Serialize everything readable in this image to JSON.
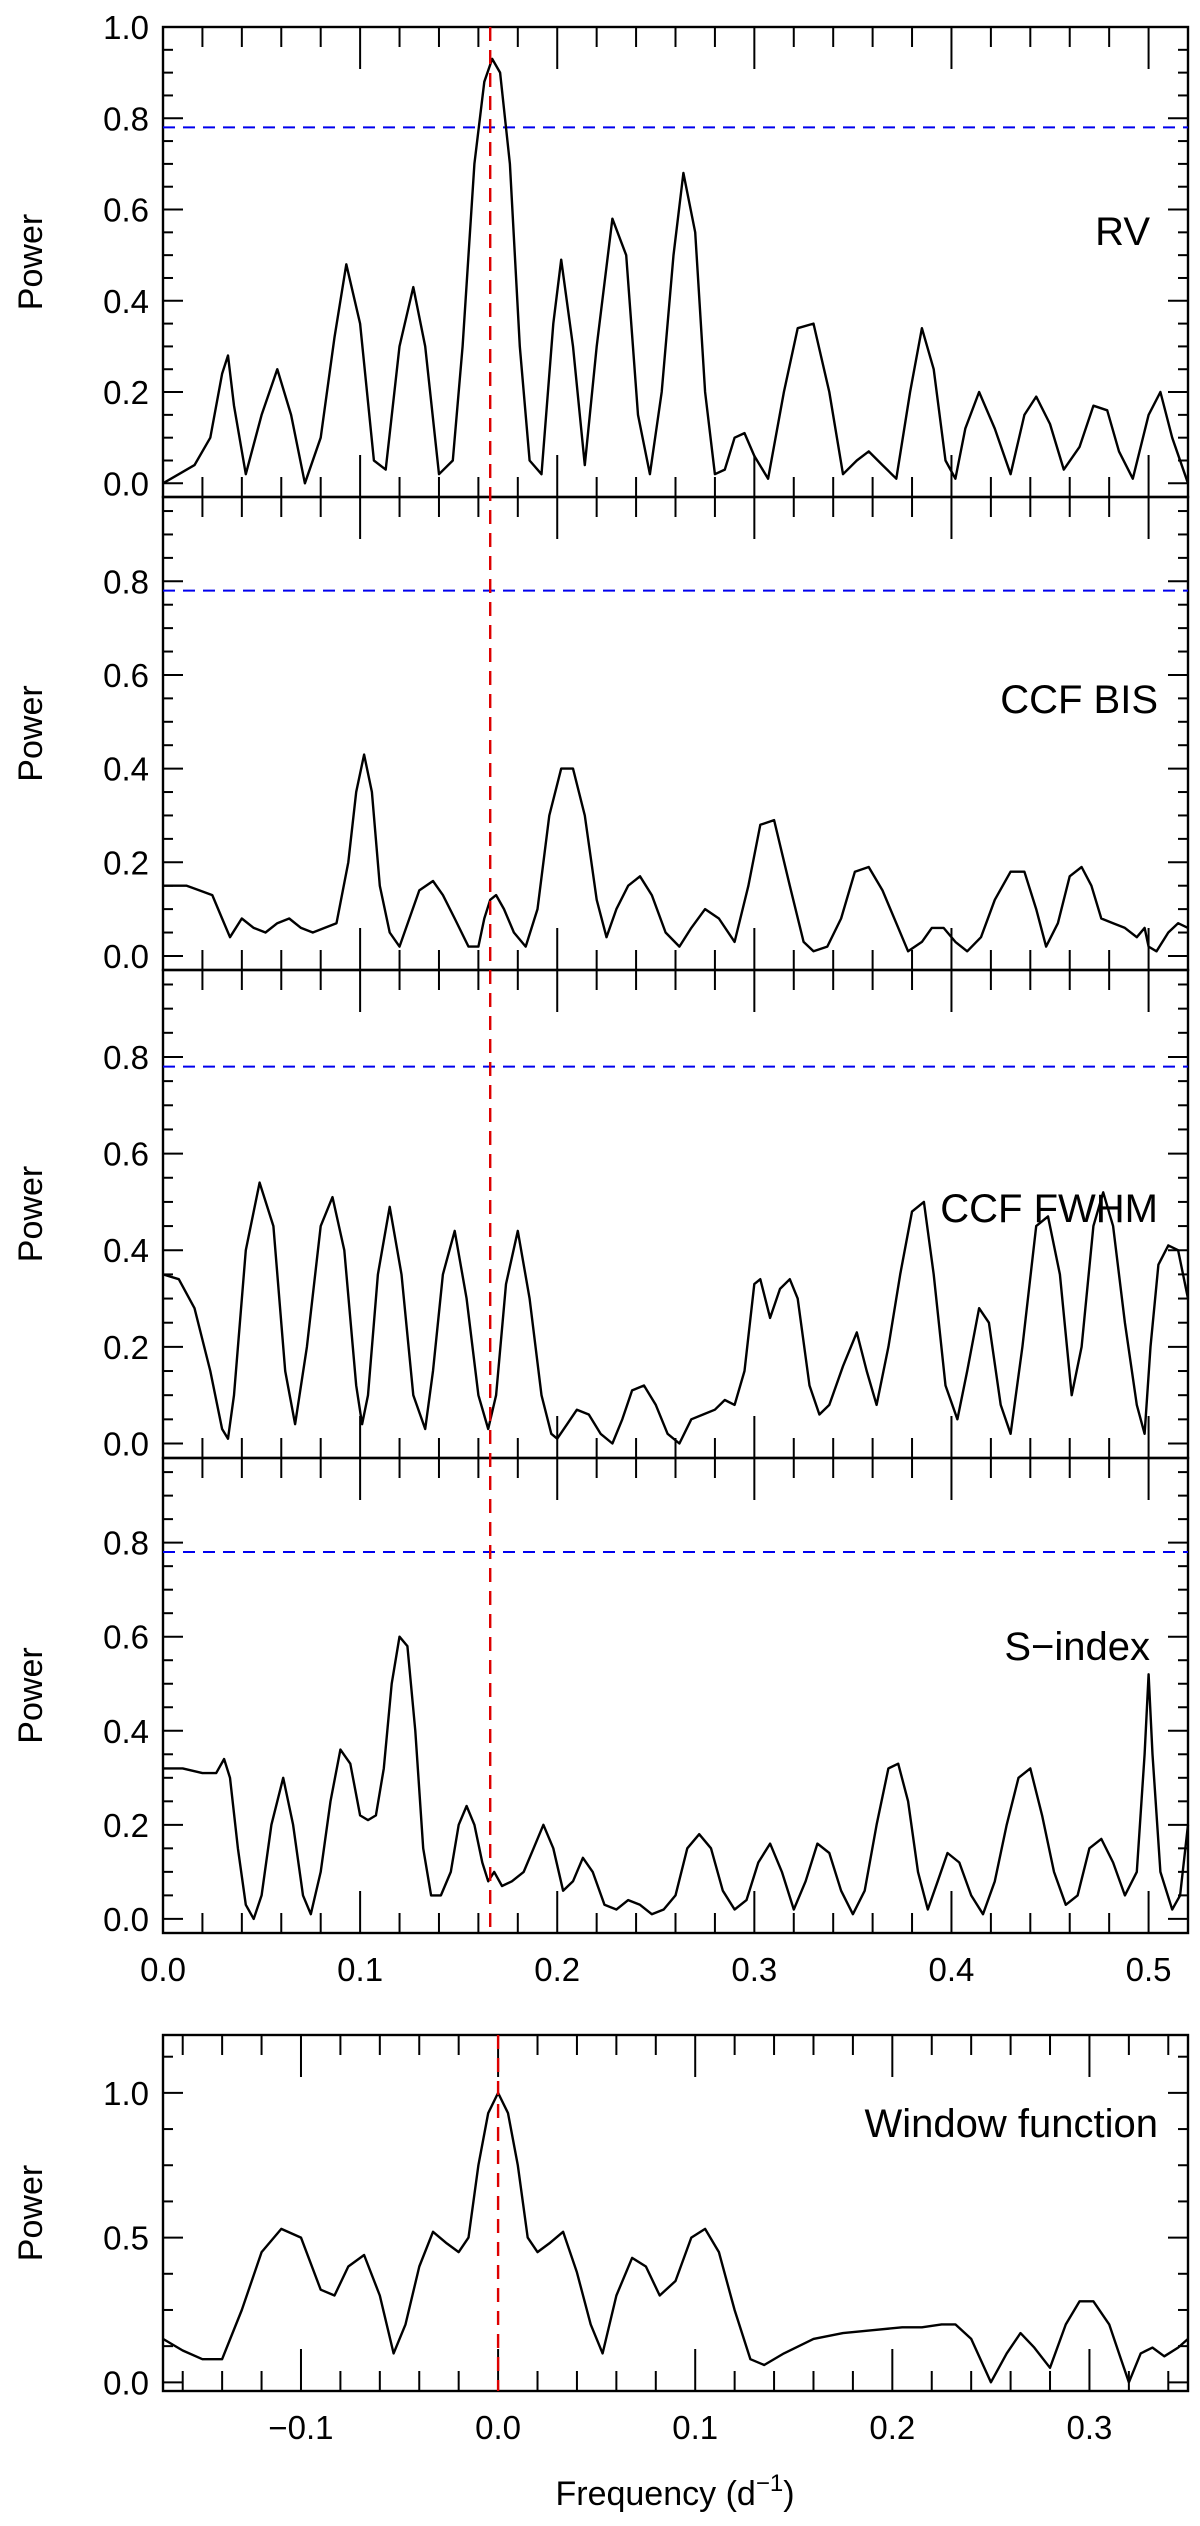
{
  "figure": {
    "ylabel": "Power",
    "xlabel_main": "Frequency (d",
    "xlabel_sup": "−1",
    "xlabel_end": ")",
    "marker_color": "#dd0000",
    "threshold_color": "#0000ee"
  },
  "chart_data": [
    {
      "type": "line",
      "label": "RV",
      "ylabel": "Power",
      "xlim": [
        0.0,
        0.52
      ],
      "ylim": [
        -0.03,
        1.0
      ],
      "yticks": [
        0.0,
        0.2,
        0.4,
        0.6,
        0.8,
        1.0
      ],
      "ytick_labels": [
        "0.0",
        "0.2",
        "0.4",
        "0.6",
        "0.8",
        "1.0"
      ],
      "threshold": 0.78,
      "marker_x": 0.166,
      "x": [
        0.0,
        0.008,
        0.016,
        0.024,
        0.03,
        0.033,
        0.036,
        0.042,
        0.05,
        0.058,
        0.065,
        0.072,
        0.08,
        0.087,
        0.093,
        0.1,
        0.107,
        0.113,
        0.12,
        0.127,
        0.133,
        0.14,
        0.147,
        0.152,
        0.158,
        0.163,
        0.167,
        0.171,
        0.176,
        0.181,
        0.186,
        0.192,
        0.198,
        0.202,
        0.208,
        0.214,
        0.22,
        0.228,
        0.235,
        0.241,
        0.247,
        0.253,
        0.259,
        0.264,
        0.27,
        0.275,
        0.28,
        0.285,
        0.29,
        0.295,
        0.3,
        0.307,
        0.315,
        0.322,
        0.33,
        0.338,
        0.345,
        0.352,
        0.358,
        0.365,
        0.372,
        0.379,
        0.385,
        0.391,
        0.397,
        0.402,
        0.407,
        0.414,
        0.422,
        0.43,
        0.437,
        0.443,
        0.45,
        0.457,
        0.465,
        0.472,
        0.479,
        0.485,
        0.492,
        0.5,
        0.506,
        0.512,
        0.52
      ],
      "y": [
        0.0,
        0.02,
        0.04,
        0.1,
        0.24,
        0.28,
        0.17,
        0.02,
        0.15,
        0.25,
        0.15,
        0.0,
        0.1,
        0.32,
        0.48,
        0.35,
        0.05,
        0.03,
        0.3,
        0.43,
        0.3,
        0.02,
        0.05,
        0.3,
        0.7,
        0.88,
        0.93,
        0.9,
        0.7,
        0.3,
        0.05,
        0.02,
        0.35,
        0.49,
        0.3,
        0.04,
        0.3,
        0.58,
        0.5,
        0.15,
        0.02,
        0.2,
        0.5,
        0.68,
        0.55,
        0.2,
        0.02,
        0.03,
        0.1,
        0.11,
        0.06,
        0.01,
        0.2,
        0.34,
        0.35,
        0.2,
        0.02,
        0.05,
        0.07,
        0.04,
        0.01,
        0.2,
        0.34,
        0.25,
        0.05,
        0.01,
        0.12,
        0.2,
        0.12,
        0.02,
        0.15,
        0.19,
        0.13,
        0.03,
        0.08,
        0.17,
        0.16,
        0.07,
        0.01,
        0.15,
        0.2,
        0.1,
        0.0
      ]
    },
    {
      "type": "line",
      "label": "CCF BIS",
      "ylabel": "Power",
      "xlim": [
        0.0,
        0.52
      ],
      "ylim": [
        -0.03,
        0.98
      ],
      "yticks": [
        0.0,
        0.2,
        0.4,
        0.6,
        0.8
      ],
      "ytick_labels": [
        "0.0",
        "0.2",
        "0.4",
        "0.6",
        "0.8"
      ],
      "threshold": 0.78,
      "marker_x": 0.166,
      "x": [
        0.0,
        0.012,
        0.025,
        0.03,
        0.034,
        0.04,
        0.046,
        0.052,
        0.058,
        0.064,
        0.07,
        0.076,
        0.082,
        0.088,
        0.094,
        0.098,
        0.102,
        0.106,
        0.11,
        0.115,
        0.12,
        0.125,
        0.13,
        0.137,
        0.142,
        0.148,
        0.155,
        0.16,
        0.163,
        0.166,
        0.169,
        0.173,
        0.178,
        0.184,
        0.19,
        0.196,
        0.202,
        0.208,
        0.214,
        0.22,
        0.225,
        0.23,
        0.236,
        0.242,
        0.248,
        0.255,
        0.262,
        0.268,
        0.275,
        0.282,
        0.29,
        0.297,
        0.303,
        0.31,
        0.318,
        0.325,
        0.33,
        0.337,
        0.344,
        0.351,
        0.358,
        0.365,
        0.372,
        0.378,
        0.385,
        0.39,
        0.396,
        0.402,
        0.408,
        0.415,
        0.422,
        0.43,
        0.437,
        0.443,
        0.448,
        0.454,
        0.46,
        0.466,
        0.471,
        0.476,
        0.482,
        0.488,
        0.494,
        0.498,
        0.5,
        0.504,
        0.51,
        0.515,
        0.52
      ],
      "y": [
        0.15,
        0.15,
        0.13,
        0.08,
        0.04,
        0.08,
        0.06,
        0.05,
        0.07,
        0.08,
        0.06,
        0.05,
        0.06,
        0.07,
        0.2,
        0.35,
        0.43,
        0.35,
        0.15,
        0.05,
        0.02,
        0.08,
        0.14,
        0.16,
        0.13,
        0.08,
        0.02,
        0.02,
        0.08,
        0.12,
        0.13,
        0.1,
        0.05,
        0.02,
        0.1,
        0.3,
        0.4,
        0.4,
        0.3,
        0.12,
        0.04,
        0.1,
        0.15,
        0.17,
        0.13,
        0.05,
        0.02,
        0.06,
        0.1,
        0.08,
        0.03,
        0.15,
        0.28,
        0.29,
        0.15,
        0.03,
        0.01,
        0.02,
        0.08,
        0.18,
        0.19,
        0.14,
        0.07,
        0.01,
        0.03,
        0.06,
        0.06,
        0.03,
        0.01,
        0.04,
        0.12,
        0.18,
        0.18,
        0.1,
        0.02,
        0.07,
        0.17,
        0.19,
        0.15,
        0.08,
        0.07,
        0.06,
        0.04,
        0.06,
        0.02,
        0.01,
        0.05,
        0.07,
        0.06
      ]
    },
    {
      "type": "line",
      "label": "CCF FWHM",
      "ylabel": "Power",
      "xlim": [
        0.0,
        0.52
      ],
      "ylim": [
        -0.03,
        0.98
      ],
      "yticks": [
        0.0,
        0.2,
        0.4,
        0.6,
        0.8
      ],
      "ytick_labels": [
        "0.0",
        "0.2",
        "0.4",
        "0.6",
        "0.8"
      ],
      "threshold": 0.78,
      "marker_x": 0.166,
      "x": [
        0.0,
        0.008,
        0.016,
        0.024,
        0.03,
        0.033,
        0.036,
        0.042,
        0.049,
        0.056,
        0.062,
        0.067,
        0.073,
        0.08,
        0.086,
        0.092,
        0.098,
        0.101,
        0.104,
        0.109,
        0.115,
        0.121,
        0.127,
        0.133,
        0.137,
        0.142,
        0.148,
        0.154,
        0.16,
        0.165,
        0.169,
        0.174,
        0.18,
        0.186,
        0.192,
        0.197,
        0.2,
        0.205,
        0.21,
        0.216,
        0.222,
        0.228,
        0.233,
        0.238,
        0.244,
        0.25,
        0.256,
        0.262,
        0.268,
        0.274,
        0.28,
        0.285,
        0.29,
        0.295,
        0.3,
        0.303,
        0.308,
        0.313,
        0.318,
        0.322,
        0.328,
        0.333,
        0.338,
        0.345,
        0.352,
        0.357,
        0.362,
        0.368,
        0.374,
        0.38,
        0.386,
        0.391,
        0.397,
        0.403,
        0.408,
        0.414,
        0.419,
        0.425,
        0.43,
        0.436,
        0.443,
        0.449,
        0.455,
        0.461,
        0.466,
        0.472,
        0.477,
        0.482,
        0.488,
        0.494,
        0.498,
        0.501,
        0.505,
        0.51,
        0.515,
        0.52
      ],
      "y": [
        0.35,
        0.34,
        0.28,
        0.15,
        0.03,
        0.01,
        0.1,
        0.4,
        0.54,
        0.45,
        0.15,
        0.04,
        0.2,
        0.45,
        0.51,
        0.4,
        0.12,
        0.04,
        0.1,
        0.35,
        0.49,
        0.35,
        0.1,
        0.03,
        0.15,
        0.35,
        0.44,
        0.3,
        0.1,
        0.03,
        0.1,
        0.33,
        0.44,
        0.3,
        0.1,
        0.02,
        0.01,
        0.04,
        0.07,
        0.06,
        0.02,
        0.0,
        0.05,
        0.11,
        0.12,
        0.08,
        0.02,
        0.0,
        0.05,
        0.06,
        0.07,
        0.09,
        0.08,
        0.15,
        0.33,
        0.34,
        0.26,
        0.32,
        0.34,
        0.3,
        0.12,
        0.06,
        0.08,
        0.16,
        0.23,
        0.15,
        0.08,
        0.2,
        0.35,
        0.48,
        0.5,
        0.35,
        0.12,
        0.05,
        0.15,
        0.28,
        0.25,
        0.08,
        0.02,
        0.2,
        0.45,
        0.47,
        0.35,
        0.1,
        0.2,
        0.45,
        0.52,
        0.45,
        0.25,
        0.08,
        0.02,
        0.2,
        0.37,
        0.41,
        0.4,
        0.3
      ]
    },
    {
      "type": "line",
      "label": "S−index",
      "ylabel": "Power",
      "xlim": [
        0.0,
        0.52
      ],
      "xticks": [
        0.0,
        0.1,
        0.2,
        0.3,
        0.4,
        0.5
      ],
      "xtick_labels": [
        "0.0",
        "0.1",
        "0.2",
        "0.3",
        "0.4",
        "0.5"
      ],
      "ylim": [
        -0.03,
        0.98
      ],
      "yticks": [
        0.0,
        0.2,
        0.4,
        0.6,
        0.8
      ],
      "ytick_labels": [
        "0.0",
        "0.2",
        "0.4",
        "0.6",
        "0.8"
      ],
      "threshold": 0.78,
      "marker_x": 0.166,
      "x": [
        0.0,
        0.01,
        0.02,
        0.027,
        0.031,
        0.034,
        0.038,
        0.042,
        0.046,
        0.05,
        0.055,
        0.061,
        0.066,
        0.071,
        0.075,
        0.08,
        0.085,
        0.09,
        0.095,
        0.1,
        0.104,
        0.108,
        0.112,
        0.116,
        0.12,
        0.124,
        0.128,
        0.132,
        0.136,
        0.141,
        0.146,
        0.15,
        0.154,
        0.158,
        0.162,
        0.165,
        0.168,
        0.172,
        0.177,
        0.183,
        0.188,
        0.193,
        0.198,
        0.203,
        0.208,
        0.213,
        0.218,
        0.224,
        0.23,
        0.236,
        0.242,
        0.248,
        0.254,
        0.26,
        0.266,
        0.272,
        0.278,
        0.284,
        0.29,
        0.296,
        0.302,
        0.308,
        0.314,
        0.32,
        0.326,
        0.332,
        0.338,
        0.344,
        0.35,
        0.356,
        0.362,
        0.368,
        0.373,
        0.378,
        0.383,
        0.388,
        0.393,
        0.398,
        0.404,
        0.41,
        0.416,
        0.422,
        0.428,
        0.434,
        0.44,
        0.446,
        0.452,
        0.458,
        0.464,
        0.47,
        0.476,
        0.482,
        0.488,
        0.494,
        0.498,
        0.5,
        0.502,
        0.506,
        0.512,
        0.516,
        0.52
      ],
      "y": [
        0.32,
        0.32,
        0.31,
        0.31,
        0.34,
        0.3,
        0.15,
        0.03,
        0.0,
        0.05,
        0.2,
        0.3,
        0.2,
        0.05,
        0.01,
        0.1,
        0.25,
        0.36,
        0.33,
        0.22,
        0.21,
        0.22,
        0.32,
        0.5,
        0.6,
        0.58,
        0.4,
        0.15,
        0.05,
        0.05,
        0.1,
        0.2,
        0.24,
        0.2,
        0.12,
        0.08,
        0.1,
        0.07,
        0.08,
        0.1,
        0.15,
        0.2,
        0.15,
        0.06,
        0.08,
        0.13,
        0.1,
        0.03,
        0.02,
        0.04,
        0.03,
        0.01,
        0.02,
        0.05,
        0.15,
        0.18,
        0.15,
        0.06,
        0.02,
        0.04,
        0.12,
        0.16,
        0.1,
        0.02,
        0.08,
        0.16,
        0.14,
        0.06,
        0.01,
        0.06,
        0.2,
        0.32,
        0.33,
        0.25,
        0.1,
        0.02,
        0.08,
        0.14,
        0.12,
        0.05,
        0.01,
        0.08,
        0.2,
        0.3,
        0.32,
        0.22,
        0.1,
        0.03,
        0.05,
        0.15,
        0.17,
        0.12,
        0.05,
        0.1,
        0.35,
        0.52,
        0.35,
        0.1,
        0.02,
        0.05,
        0.2
      ]
    },
    {
      "type": "line",
      "label": "Window function",
      "ylabel": "Power",
      "xlabel": "Frequency (d−1)",
      "xlim": [
        -0.17,
        0.35
      ],
      "xticks": [
        -0.1,
        0.0,
        0.1,
        0.2,
        0.3
      ],
      "xtick_labels": [
        "−0.1",
        "0.0",
        "0.1",
        "0.2",
        "0.3"
      ],
      "ylim": [
        -0.03,
        1.2
      ],
      "yticks": [
        0.0,
        0.5,
        1.0
      ],
      "ytick_labels": [
        "0.0",
        "0.5",
        "1.0"
      ],
      "marker_x": 0.0,
      "x": [
        -0.17,
        -0.16,
        -0.15,
        -0.14,
        -0.13,
        -0.12,
        -0.11,
        -0.1,
        -0.09,
        -0.083,
        -0.076,
        -0.068,
        -0.06,
        -0.053,
        -0.047,
        -0.04,
        -0.033,
        -0.026,
        -0.02,
        -0.015,
        -0.01,
        -0.005,
        0.0,
        0.005,
        0.01,
        0.015,
        0.02,
        0.026,
        0.033,
        0.04,
        0.047,
        0.053,
        0.06,
        0.068,
        0.075,
        0.082,
        0.09,
        0.098,
        0.105,
        0.112,
        0.12,
        0.128,
        0.135,
        0.145,
        0.16,
        0.175,
        0.19,
        0.205,
        0.215,
        0.225,
        0.232,
        0.24,
        0.25,
        0.258,
        0.265,
        0.272,
        0.28,
        0.288,
        0.295,
        0.302,
        0.31,
        0.316,
        0.32,
        0.326,
        0.332,
        0.338,
        0.345,
        0.35
      ],
      "y": [
        0.15,
        0.11,
        0.08,
        0.08,
        0.25,
        0.45,
        0.53,
        0.5,
        0.32,
        0.3,
        0.4,
        0.44,
        0.3,
        0.1,
        0.2,
        0.4,
        0.52,
        0.48,
        0.45,
        0.5,
        0.75,
        0.93,
        1.0,
        0.93,
        0.75,
        0.5,
        0.45,
        0.48,
        0.52,
        0.38,
        0.2,
        0.1,
        0.3,
        0.43,
        0.4,
        0.3,
        0.35,
        0.5,
        0.53,
        0.45,
        0.25,
        0.08,
        0.06,
        0.1,
        0.15,
        0.17,
        0.18,
        0.19,
        0.19,
        0.2,
        0.2,
        0.15,
        0.0,
        0.1,
        0.17,
        0.12,
        0.05,
        0.2,
        0.28,
        0.28,
        0.2,
        0.08,
        0.0,
        0.1,
        0.12,
        0.09,
        0.12,
        0.15
      ]
    }
  ]
}
